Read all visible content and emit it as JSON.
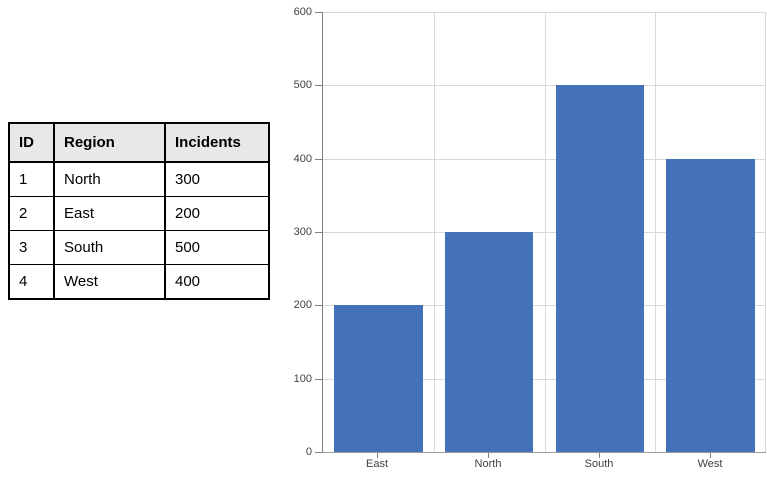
{
  "table": {
    "headers": [
      "ID",
      "Region",
      "Incidents"
    ],
    "rows": [
      {
        "id": "1",
        "region": "North",
        "incidents": "300"
      },
      {
        "id": "2",
        "region": "East",
        "incidents": "200"
      },
      {
        "id": "3",
        "region": "South",
        "incidents": "500"
      },
      {
        "id": "4",
        "region": "West",
        "incidents": "400"
      }
    ],
    "header_bg": "#e8e8e8",
    "border_color": "#000000"
  },
  "chart_data": {
    "type": "bar",
    "categories": [
      "East",
      "North",
      "South",
      "West"
    ],
    "values": [
      200,
      300,
      500,
      400
    ],
    "title": "",
    "xlabel": "",
    "ylabel": "",
    "ylim": [
      0,
      600
    ],
    "ytick_interval": 100,
    "ytick_labels_top_to_bottom": [
      "600",
      "500",
      "400",
      "300",
      "200",
      "100",
      "0"
    ],
    "grid": true,
    "legend": false,
    "bar_color": "#4472b9",
    "gridline_color": "#d9d9d9",
    "axis_color": "#808080",
    "tick_label_color": "#404040"
  }
}
